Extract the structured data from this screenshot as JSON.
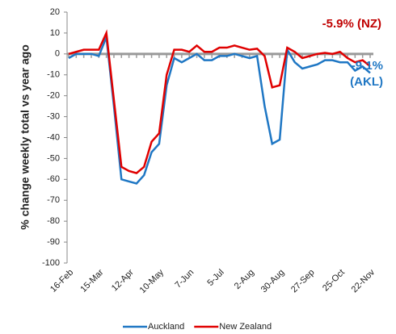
{
  "chart_data": {
    "type": "line",
    "y_label": "% change weekly total  vs year ago",
    "categories": [
      "16-Feb",
      null,
      null,
      null,
      "15-Mar",
      null,
      null,
      null,
      "12-Apr",
      null,
      null,
      null,
      "10-May",
      null,
      null,
      null,
      "7-Jun",
      null,
      null,
      null,
      "5-Jul",
      null,
      null,
      null,
      "2-Aug",
      null,
      null,
      null,
      "30-Aug",
      null,
      null,
      null,
      "27-Sep",
      null,
      null,
      null,
      "25-Oct",
      null,
      null,
      null,
      "22-Nov"
    ],
    "series": [
      {
        "name": "Auckland",
        "color": "#1f77c4",
        "values": [
          -2,
          0,
          0,
          0,
          -1,
          8,
          -25,
          -60,
          -61,
          -62,
          -58,
          -47,
          -43,
          -15,
          -2,
          -4,
          -2,
          0,
          -3,
          -3,
          -1,
          -1,
          0,
          -1,
          -2,
          -1,
          -25,
          -43,
          -41,
          2,
          -4,
          -7,
          -6,
          -5,
          -3,
          -3,
          -4,
          -4,
          -8,
          -6,
          -9.1
        ]
      },
      {
        "name": "New Zealand",
        "color": "#e00000",
        "values": [
          0,
          1,
          2,
          2,
          2,
          10,
          -22,
          -54,
          -56,
          -57,
          -54,
          -42,
          -38,
          -10,
          2,
          2,
          1,
          4,
          1,
          1,
          3,
          3,
          4,
          3,
          2,
          2.5,
          -1,
          -16,
          -15,
          3,
          1,
          -2,
          -1,
          0,
          0.5,
          0,
          1,
          -2,
          -4,
          -3,
          -5.9
        ]
      }
    ],
    "annotations": [
      {
        "lines": [
          "-5.9% (NZ)"
        ],
        "color": "#c00000"
      },
      {
        "lines": [
          "-9.1%",
          "(AKL)"
        ],
        "color": "#1f77c4"
      }
    ],
    "ylim": [
      -100,
      20
    ],
    "yticks": [
      20,
      10,
      0,
      -10,
      -20,
      -30,
      -40,
      -50,
      -60,
      -70,
      -80,
      -90,
      -100
    ],
    "legend": "bottom"
  }
}
